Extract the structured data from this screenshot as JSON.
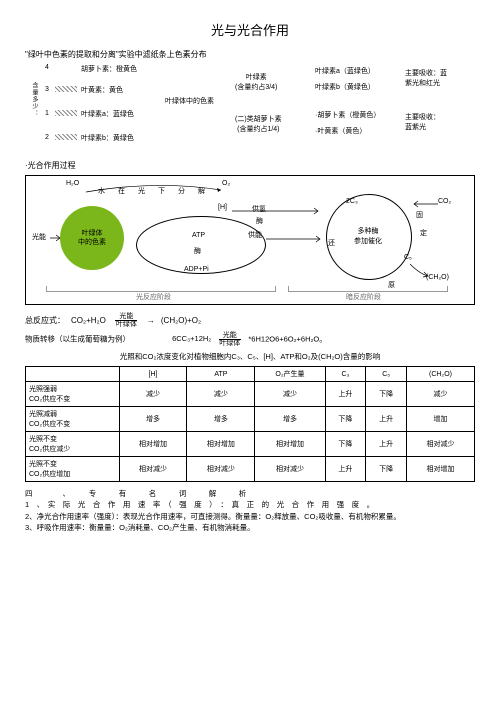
{
  "title": "光与光合作用",
  "sec1": {
    "header": "\"绿叶中色素的提取和分离\"实验中滤纸条上色素分布",
    "toprow": "胡萝卜素：橙黄色",
    "nums": [
      "4",
      "3",
      "1",
      "2"
    ],
    "strips": [
      "叶黄素：黄色",
      "叶绿素a：蓝绿色",
      "叶绿素b：黄绿色"
    ],
    "vert": "含量多少：",
    "mid_center": "叶绿体中的色素",
    "mid_a": "叶绿素\n(含量约占3/4)",
    "mid_b": "(二)类胡萝卜素\n(含量约占1/4)",
    "r_a1": "叶绿素a（蓝绿色）",
    "r_a2": "叶绿素b（黄绿色）",
    "r_b1": "·胡萝卜素（橙黄色）",
    "r_b2": "·叶黄素（黄色）",
    "abs1": "主要吸收：蓝\n紫光和红光",
    "abs2": "主要吸收：\n蓝紫光"
  },
  "sec2": {
    "label": "·光合作用过程",
    "h2o": "H₂O",
    "water_decomp": "水　在　光　下　分　解",
    "o2": "O₂",
    "light": "光能",
    "pigment": "叶绿体\n中的色素",
    "h": "[H]",
    "supply_h": "供氢",
    "enzyme": "酶",
    "atp": "ATP",
    "adp": "ADP+Pi",
    "supply_e": "供能",
    "co2": "CO₂",
    "c3": "2C₃",
    "c5": "C₅",
    "ch2o": "(CH₂O)",
    "catalyst": "多种酶\n参加催化",
    "fix": "固",
    "fix2": "定",
    "reduce": "还",
    "reduce2": "原",
    "phase_light": "光反应阶段",
    "phase_dark": "暗反应阶段"
  },
  "eq": {
    "label": "总反应式：",
    "lhs": "CO₂+H₂O",
    "frac_top": "光能",
    "frac_bot": "叶绿体",
    "rhs": "(CH₂O)+O₂"
  },
  "mat": {
    "line1_a": "物质转移（以生成葡萄糖为例）",
    "line1_b": "6CC₃+12H₂",
    "line1_c": "光能",
    "line1_d": "叶绿体",
    "line1_e": "*6H12O6+6O₂+6H₂O。",
    "line2": "光照和CO₂浓度变化对植物细胞内C₃、C₅、[H]、ATP和O₂及(CH₂O)含量的影响"
  },
  "table": {
    "headers": [
      "",
      "[H]",
      "ATP",
      "O₂产生量",
      "C₃",
      "C₅",
      "(CH₂O)"
    ],
    "rows": [
      {
        "h": "光照强弱\nCO₂供应不变",
        "c": [
          "减少",
          "减少",
          "减少",
          "上升",
          "下降",
          "减少"
        ]
      },
      {
        "h": "光照减弱\nCO₂供应不变",
        "c": [
          "增多",
          "增多",
          "增多",
          "下降",
          "上升",
          "增加"
        ]
      },
      {
        "h": "光照不变\nCO₂供应减少",
        "c": [
          "相对增加",
          "相对增加",
          "相对增加",
          "下降",
          "上升",
          "相对减少"
        ]
      },
      {
        "h": "光照不变\nCO₂供应增加",
        "c": [
          "相对减少",
          "相对减少",
          "相对减少",
          "上升",
          "下降",
          "相对增加"
        ]
      }
    ]
  },
  "notes": {
    "head": "四　　　　、　　　专　　　有　　　名　　　词　　　解　　　析",
    "n1": "1　、　实　际　光　合　作　用　速　率　（　强　度　）　：　真　正　的　光　合　作　用　强　度　。",
    "n2": "2、净光合作用速率（强度）：表现光合作用速率，可直接测得。衡量量：O₂释放量、CO₂吸收量、有机物积累量。",
    "n3": "3、呼吸作用速率：衡量量：O₂消耗量、CO₂产生量、有机物消耗量。"
  }
}
